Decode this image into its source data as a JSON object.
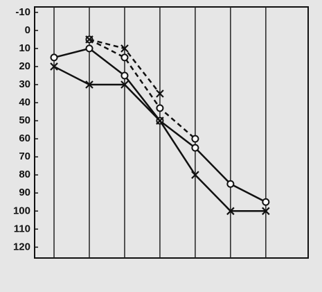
{
  "chart_data": {
    "type": "line",
    "x": [
      1,
      2,
      3,
      4,
      5,
      6,
      7
    ],
    "xlim": [
      0.45,
      8.2
    ],
    "ylim": [
      -13,
      126
    ],
    "y_inverted": true,
    "yticks": [
      -10,
      0,
      10,
      20,
      30,
      40,
      50,
      60,
      70,
      80,
      90,
      100,
      110,
      120
    ],
    "grid": true,
    "series": [
      {
        "color": "#111111",
        "marker": "circle",
        "dashed": false,
        "values": [
          15,
          10,
          25,
          50,
          65,
          85,
          95
        ]
      },
      {
        "color": "#111111",
        "marker": "cross",
        "dashed": false,
        "values": [
          20,
          30,
          30,
          50,
          80,
          100,
          100
        ]
      },
      {
        "color": "#111111",
        "marker": "circle",
        "dashed": true,
        "values": [
          null,
          5,
          15,
          43,
          60,
          null,
          null
        ]
      },
      {
        "color": "#111111",
        "marker": "cross",
        "dashed": true,
        "values": [
          null,
          5,
          10,
          35,
          null,
          null,
          null
        ]
      }
    ]
  }
}
